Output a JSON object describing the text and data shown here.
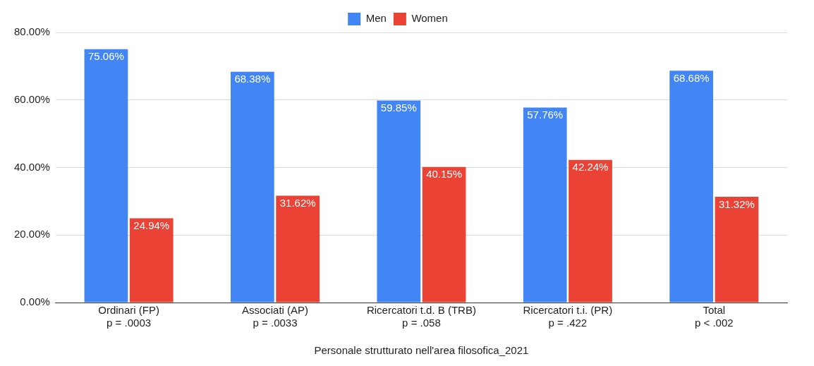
{
  "chart_data": {
    "type": "bar",
    "xlabel": "Personale strutturato nell'area filosofica_2021",
    "categories": [
      "Ordinari (FP)\np = .0003",
      "Associati (AP)\np = .0033",
      "Ricercatori t.d. B (TRB)\np = .058",
      "Ricercatori t.i. (PR)\np = .422",
      "Total\np < .002"
    ],
    "series": [
      {
        "name": "Men",
        "color": "#4285f4",
        "values": [
          75.06,
          68.38,
          59.85,
          57.76,
          68.68
        ],
        "value_labels": [
          "75.06%",
          "68.38%",
          "59.85%",
          "57.76%",
          "68.68%"
        ]
      },
      {
        "name": "Women",
        "color": "#ea4335",
        "values": [
          24.94,
          31.62,
          40.15,
          42.24,
          31.32
        ],
        "value_labels": [
          "24.94%",
          "31.62%",
          "40.15%",
          "42.24%",
          "31.32%"
        ]
      }
    ],
    "ylim": [
      0,
      80
    ],
    "yticks": [
      {
        "value": 0,
        "label": "0.00%"
      },
      {
        "value": 20,
        "label": "20.00%"
      },
      {
        "value": 40,
        "label": "40.00%"
      },
      {
        "value": 60,
        "label": "60.00%"
      },
      {
        "value": 80,
        "label": "80.00%"
      }
    ],
    "grid": "y",
    "legend": "top"
  }
}
